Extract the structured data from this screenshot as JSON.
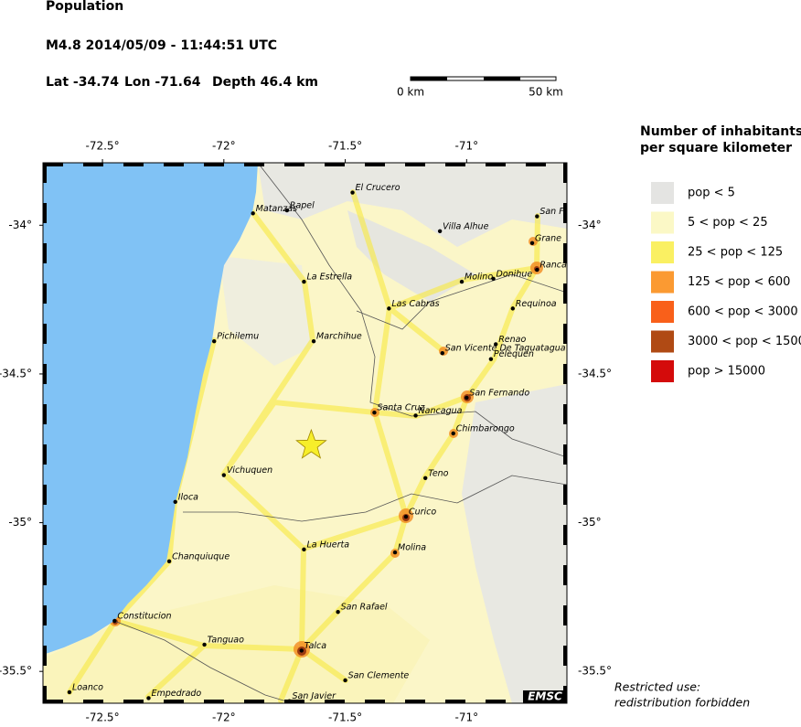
{
  "header": {
    "title": "Population",
    "event": "M4.8  2014/05/09 - 11:44:51 UTC",
    "lat": "Lat -34.74",
    "lon": "Lon -71.64",
    "depth": "Depth  46.4 km"
  },
  "scale_bar": {
    "start": "0 km",
    "end": "50 km"
  },
  "map": {
    "lonlim": [
      -72.745,
      -70.587
    ],
    "latlim": [
      -35.607,
      -33.79
    ],
    "lon_ticks": [
      {
        "value": -72.5,
        "label": "-72.5°"
      },
      {
        "value": -72,
        "label": "-72°"
      },
      {
        "value": -71.5,
        "label": "-71.5°"
      },
      {
        "value": -71,
        "label": "-71°"
      }
    ],
    "lat_ticks": [
      {
        "value": -34,
        "label": "-34°"
      },
      {
        "value": -34.5,
        "label": "-34.5°"
      },
      {
        "value": -35,
        "label": "-35°"
      },
      {
        "value": -35.5,
        "label": "-35.5°"
      }
    ],
    "epicenter": {
      "lat": -34.74,
      "lon": -71.64
    },
    "cities": [
      {
        "name": "El Crucero",
        "lon": -71.47,
        "lat": -33.89
      },
      {
        "name": "Matanzas",
        "lon": -71.88,
        "lat": -33.96
      },
      {
        "name": "Rapel",
        "lon": -71.74,
        "lat": -33.95
      },
      {
        "name": "Villa Alhue",
        "lon": -71.11,
        "lat": -34.02
      },
      {
        "name": "San Fr",
        "lon": -70.71,
        "lat": -33.97
      },
      {
        "name": "Grane",
        "lon": -70.73,
        "lat": -34.06
      },
      {
        "name": "Ranca",
        "lon": -70.71,
        "lat": -34.15
      },
      {
        "name": "La Estrella",
        "lon": -71.67,
        "lat": -34.19
      },
      {
        "name": "Molino",
        "lon": -71.02,
        "lat": -34.19
      },
      {
        "name": "Donihue",
        "lon": -70.89,
        "lat": -34.18
      },
      {
        "name": "Las Cabras",
        "lon": -71.32,
        "lat": -34.28
      },
      {
        "name": "Requinoa",
        "lon": -70.81,
        "lat": -34.28
      },
      {
        "name": "Pichilemu",
        "lon": -72.04,
        "lat": -34.39
      },
      {
        "name": "Marchihue",
        "lon": -71.63,
        "lat": -34.39
      },
      {
        "name": "Renao",
        "lon": -70.88,
        "lat": -34.4
      },
      {
        "name": "San Vicente De Taguatagua",
        "lon": -71.1,
        "lat": -34.43
      },
      {
        "name": "Pelequen",
        "lon": -70.9,
        "lat": -34.45
      },
      {
        "name": "San Fernando",
        "lon": -71.0,
        "lat": -34.58
      },
      {
        "name": "Santa Cruz",
        "lon": -71.38,
        "lat": -34.63
      },
      {
        "name": "Nancagua",
        "lon": -71.21,
        "lat": -34.64
      },
      {
        "name": "Chimbarongo",
        "lon": -71.055,
        "lat": -34.7
      },
      {
        "name": "Vichuquen",
        "lon": -72.0,
        "lat": -34.84
      },
      {
        "name": "Teno",
        "lon": -71.17,
        "lat": -34.85
      },
      {
        "name": "Iloca",
        "lon": -72.2,
        "lat": -34.93
      },
      {
        "name": "Curico",
        "lon": -71.25,
        "lat": -34.98
      },
      {
        "name": "La Huerta",
        "lon": -71.67,
        "lat": -35.09
      },
      {
        "name": "Molina",
        "lon": -71.295,
        "lat": -35.1
      },
      {
        "name": "Chanquiuque",
        "lon": -72.225,
        "lat": -35.13
      },
      {
        "name": "San Rafael",
        "lon": -71.53,
        "lat": -35.3
      },
      {
        "name": "Constitucion",
        "lon": -72.45,
        "lat": -35.33
      },
      {
        "name": "Tanguao",
        "lon": -72.08,
        "lat": -35.41
      },
      {
        "name": "Talca",
        "lon": -71.68,
        "lat": -35.43
      },
      {
        "name": "San Clemente",
        "lon": -71.5,
        "lat": -35.53
      },
      {
        "name": "Loanco",
        "lon": -72.636,
        "lat": -35.57
      },
      {
        "name": "Empedrado",
        "lon": -72.31,
        "lat": -35.59
      },
      {
        "name": "San Javier",
        "lon": -71.73,
        "lat": -35.6
      }
    ],
    "credit": "EMSC"
  },
  "legend": {
    "title_lines": [
      "Number of inhabitants",
      "per square kilometer"
    ],
    "entries": [
      {
        "label": "pop < 5",
        "color": "#e4e4e2"
      },
      {
        "label": "5 < pop < 25",
        "color": "#fbf8c6"
      },
      {
        "label": "25 < pop < 125",
        "color": "#faf062"
      },
      {
        "label": "125 < pop < 600",
        "color": "#fb9a32"
      },
      {
        "label": "600 < pop < 3000",
        "color": "#f9601a"
      },
      {
        "label": "3000 < pop < 15000",
        "color": "#b04a14"
      },
      {
        "label": "pop > 15000",
        "color": "#d40b0b"
      }
    ]
  },
  "notice": [
    "Restricted use:",
    "redistribution forbidden"
  ]
}
